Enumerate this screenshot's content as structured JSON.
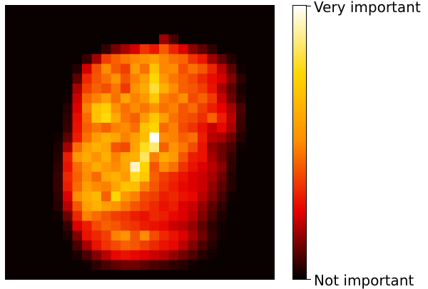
{
  "chart_data": {
    "type": "heatmap",
    "grid": {
      "rows": 28,
      "cols": 28
    },
    "description_values": "Feature-importance value per pixel, 0 = lowest, 1 = highest",
    "colormap": "hot",
    "colormap_stops": [
      "#000000",
      "#e60000",
      "#ff8c00",
      "#ffd700",
      "#ffffff"
    ],
    "background_value": 0.01,
    "colorbar": {
      "ticks": [
        {
          "value": 1,
          "label": "Very important"
        },
        {
          "value": 0,
          "label": "Not important"
        }
      ]
    },
    "axes_visible": false,
    "values": [
      [
        0.01,
        0.01,
        0.01,
        0.01,
        0.01,
        0.01,
        0.01,
        0.01,
        0.01,
        0.01,
        0.01,
        0.01,
        0.01,
        0.01,
        0.01,
        0.01,
        0.01,
        0.01,
        0.01,
        0.01,
        0.01,
        0.01,
        0.01,
        0.01,
        0.01,
        0.01,
        0.01,
        0.01
      ],
      [
        0.01,
        0.01,
        0.01,
        0.01,
        0.01,
        0.01,
        0.01,
        0.01,
        0.01,
        0.01,
        0.01,
        0.01,
        0.01,
        0.01,
        0.01,
        0.01,
        0.01,
        0.01,
        0.01,
        0.01,
        0.01,
        0.01,
        0.01,
        0.01,
        0.01,
        0.01,
        0.01,
        0.01
      ],
      [
        0.01,
        0.01,
        0.01,
        0.01,
        0.01,
        0.01,
        0.01,
        0.01,
        0.01,
        0.01,
        0.01,
        0.01,
        0.01,
        0.01,
        0.01,
        0.01,
        0.01,
        0.01,
        0.01,
        0.01,
        0.01,
        0.01,
        0.01,
        0.01,
        0.01,
        0.01,
        0.01,
        0.01
      ],
      [
        0.01,
        0.01,
        0.01,
        0.01,
        0.01,
        0.01,
        0.01,
        0.01,
        0.01,
        0.01,
        0.01,
        0.01,
        0.01,
        0.01,
        0.01,
        0.01,
        0.17,
        0.08,
        0.01,
        0.01,
        0.01,
        0.01,
        0.01,
        0.01,
        0.01,
        0.01,
        0.01,
        0.01
      ],
      [
        0.01,
        0.01,
        0.01,
        0.01,
        0.01,
        0.01,
        0.01,
        0.01,
        0.01,
        0.01,
        0.06,
        0.13,
        0.18,
        0.23,
        0.34,
        0.29,
        0.41,
        0.31,
        0.24,
        0.15,
        0.1,
        0.05,
        0.01,
        0.01,
        0.01,
        0.01,
        0.01,
        0.01
      ],
      [
        0.01,
        0.01,
        0.01,
        0.01,
        0.01,
        0.01,
        0.01,
        0.01,
        0.06,
        0.18,
        0.36,
        0.42,
        0.46,
        0.49,
        0.52,
        0.56,
        0.49,
        0.45,
        0.43,
        0.34,
        0.29,
        0.17,
        0.1,
        0.04,
        0.01,
        0.01,
        0.01,
        0.01
      ],
      [
        0.01,
        0.01,
        0.01,
        0.01,
        0.01,
        0.01,
        0.01,
        0.04,
        0.23,
        0.39,
        0.5,
        0.41,
        0.36,
        0.55,
        0.45,
        0.68,
        0.49,
        0.5,
        0.39,
        0.45,
        0.4,
        0.31,
        0.2,
        0.1,
        0.02,
        0.01,
        0.01,
        0.01
      ],
      [
        0.01,
        0.01,
        0.01,
        0.01,
        0.01,
        0.01,
        0.01,
        0.1,
        0.32,
        0.4,
        0.45,
        0.52,
        0.4,
        0.48,
        0.56,
        0.75,
        0.54,
        0.46,
        0.42,
        0.38,
        0.32,
        0.27,
        0.23,
        0.14,
        0.05,
        0.01,
        0.01,
        0.01
      ],
      [
        0.01,
        0.01,
        0.01,
        0.01,
        0.01,
        0.01,
        0.01,
        0.18,
        0.36,
        0.42,
        0.39,
        0.46,
        0.35,
        0.52,
        0.6,
        0.8,
        0.62,
        0.5,
        0.42,
        0.4,
        0.36,
        0.28,
        0.18,
        0.1,
        0.03,
        0.01,
        0.01,
        0.01
      ],
      [
        0.01,
        0.01,
        0.01,
        0.01,
        0.01,
        0.01,
        0.02,
        0.22,
        0.43,
        0.48,
        0.56,
        0.45,
        0.58,
        0.48,
        0.54,
        0.7,
        0.48,
        0.45,
        0.5,
        0.38,
        0.42,
        0.35,
        0.22,
        0.12,
        0.04,
        0.01,
        0.01,
        0.01
      ],
      [
        0.01,
        0.01,
        0.01,
        0.01,
        0.01,
        0.01,
        0.04,
        0.24,
        0.48,
        0.68,
        0.72,
        0.52,
        0.45,
        0.5,
        0.46,
        0.52,
        0.45,
        0.48,
        0.4,
        0.44,
        0.36,
        0.3,
        0.25,
        0.18,
        0.08,
        0.01,
        0.01,
        0.01
      ],
      [
        0.01,
        0.01,
        0.01,
        0.01,
        0.01,
        0.01,
        0.05,
        0.27,
        0.44,
        0.68,
        0.76,
        0.6,
        0.46,
        0.42,
        0.55,
        0.7,
        0.56,
        0.45,
        0.4,
        0.38,
        0.33,
        0.42,
        0.3,
        0.2,
        0.07,
        0.01,
        0.01,
        0.01
      ],
      [
        0.01,
        0.01,
        0.01,
        0.01,
        0.01,
        0.01,
        0.06,
        0.28,
        0.42,
        0.46,
        0.42,
        0.48,
        0.5,
        0.45,
        0.68,
        0.74,
        0.44,
        0.48,
        0.38,
        0.34,
        0.28,
        0.22,
        0.26,
        0.18,
        0.06,
        0.01,
        0.01,
        0.01
      ],
      [
        0.01,
        0.01,
        0.01,
        0.01,
        0.01,
        0.02,
        0.1,
        0.3,
        0.45,
        0.55,
        0.62,
        0.58,
        0.48,
        0.56,
        0.66,
        1.0,
        0.5,
        0.48,
        0.42,
        0.45,
        0.3,
        0.2,
        0.18,
        0.12,
        0.04,
        0.01,
        0.01,
        0.01
      ],
      [
        0.01,
        0.01,
        0.01,
        0.01,
        0.01,
        0.03,
        0.18,
        0.44,
        0.56,
        0.62,
        0.58,
        0.4,
        0.38,
        0.58,
        0.78,
        0.86,
        0.42,
        0.52,
        0.46,
        0.38,
        0.28,
        0.16,
        0.12,
        0.08,
        0.02,
        0.01,
        0.01,
        0.01
      ],
      [
        0.01,
        0.01,
        0.01,
        0.01,
        0.01,
        0.04,
        0.3,
        0.54,
        0.6,
        0.52,
        0.62,
        0.48,
        0.6,
        0.62,
        0.84,
        0.48,
        0.6,
        0.55,
        0.4,
        0.3,
        0.28,
        0.18,
        0.12,
        0.06,
        0.01,
        0.01,
        0.01,
        0.01
      ],
      [
        0.01,
        0.01,
        0.01,
        0.01,
        0.01,
        0.05,
        0.28,
        0.44,
        0.52,
        0.6,
        0.55,
        0.5,
        0.58,
        0.94,
        0.74,
        0.4,
        0.5,
        0.45,
        0.34,
        0.28,
        0.24,
        0.2,
        0.15,
        0.05,
        0.01,
        0.01,
        0.01,
        0.01
      ],
      [
        0.01,
        0.01,
        0.01,
        0.01,
        0.01,
        0.06,
        0.32,
        0.42,
        0.5,
        0.44,
        0.58,
        0.62,
        0.55,
        0.78,
        0.7,
        0.42,
        0.36,
        0.32,
        0.28,
        0.24,
        0.22,
        0.18,
        0.12,
        0.04,
        0.01,
        0.01,
        0.01,
        0.01
      ],
      [
        0.01,
        0.01,
        0.01,
        0.01,
        0.01,
        0.06,
        0.3,
        0.44,
        0.56,
        0.5,
        0.48,
        0.58,
        0.68,
        0.66,
        0.48,
        0.4,
        0.34,
        0.3,
        0.26,
        0.24,
        0.22,
        0.16,
        0.1,
        0.04,
        0.01,
        0.01,
        0.01,
        0.01
      ],
      [
        0.01,
        0.01,
        0.01,
        0.01,
        0.01,
        0.05,
        0.24,
        0.5,
        0.6,
        0.64,
        0.42,
        0.74,
        0.54,
        0.48,
        0.38,
        0.36,
        0.3,
        0.32,
        0.28,
        0.26,
        0.2,
        0.14,
        0.08,
        0.02,
        0.01,
        0.01,
        0.01,
        0.01
      ],
      [
        0.01,
        0.01,
        0.01,
        0.01,
        0.01,
        0.04,
        0.2,
        0.4,
        0.56,
        0.62,
        0.56,
        0.52,
        0.46,
        0.4,
        0.36,
        0.32,
        0.28,
        0.3,
        0.24,
        0.22,
        0.16,
        0.1,
        0.05,
        0.01,
        0.01,
        0.01,
        0.01,
        0.01
      ],
      [
        0.01,
        0.01,
        0.01,
        0.01,
        0.01,
        0.02,
        0.12,
        0.32,
        0.48,
        0.44,
        0.4,
        0.36,
        0.34,
        0.3,
        0.28,
        0.32,
        0.3,
        0.26,
        0.24,
        0.2,
        0.14,
        0.08,
        0.03,
        0.01,
        0.01,
        0.01,
        0.01,
        0.01
      ],
      [
        0.01,
        0.01,
        0.01,
        0.01,
        0.01,
        0.01,
        0.06,
        0.24,
        0.3,
        0.38,
        0.42,
        0.4,
        0.36,
        0.34,
        0.3,
        0.28,
        0.26,
        0.22,
        0.2,
        0.16,
        0.1,
        0.05,
        0.02,
        0.01,
        0.01,
        0.01,
        0.01,
        0.01
      ],
      [
        0.01,
        0.01,
        0.01,
        0.01,
        0.01,
        0.01,
        0.03,
        0.14,
        0.28,
        0.32,
        0.36,
        0.48,
        0.52,
        0.4,
        0.5,
        0.38,
        0.32,
        0.28,
        0.24,
        0.18,
        0.12,
        0.06,
        0.02,
        0.01,
        0.01,
        0.01,
        0.01,
        0.01
      ],
      [
        0.01,
        0.01,
        0.01,
        0.01,
        0.01,
        0.01,
        0.01,
        0.08,
        0.18,
        0.28,
        0.34,
        0.38,
        0.42,
        0.4,
        0.36,
        0.32,
        0.28,
        0.26,
        0.2,
        0.14,
        0.08,
        0.04,
        0.01,
        0.01,
        0.01,
        0.01,
        0.01,
        0.01
      ],
      [
        0.01,
        0.01,
        0.01,
        0.01,
        0.01,
        0.01,
        0.01,
        0.03,
        0.08,
        0.14,
        0.2,
        0.26,
        0.28,
        0.26,
        0.24,
        0.22,
        0.2,
        0.16,
        0.12,
        0.08,
        0.04,
        0.02,
        0.01,
        0.01,
        0.01,
        0.01,
        0.01,
        0.01
      ],
      [
        0.01,
        0.01,
        0.01,
        0.01,
        0.01,
        0.01,
        0.01,
        0.01,
        0.02,
        0.05,
        0.08,
        0.1,
        0.12,
        0.12,
        0.1,
        0.08,
        0.07,
        0.05,
        0.04,
        0.02,
        0.01,
        0.01,
        0.01,
        0.01,
        0.01,
        0.01,
        0.01,
        0.01
      ],
      [
        0.01,
        0.01,
        0.01,
        0.01,
        0.01,
        0.01,
        0.01,
        0.01,
        0.01,
        0.01,
        0.01,
        0.01,
        0.01,
        0.01,
        0.01,
        0.01,
        0.01,
        0.01,
        0.01,
        0.01,
        0.01,
        0.01,
        0.01,
        0.01,
        0.01,
        0.01,
        0.01,
        0.01
      ]
    ]
  }
}
